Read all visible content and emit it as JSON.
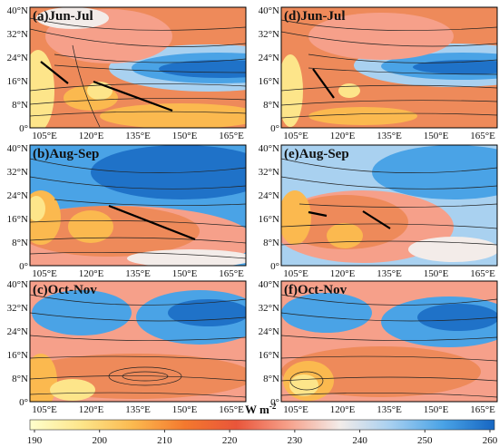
{
  "panels": [
    {
      "id": "a",
      "title": "(a)Jun-Jul"
    },
    {
      "id": "d",
      "title": "(d)Jun-Jul"
    },
    {
      "id": "b",
      "title": "(b)Aug-Sep"
    },
    {
      "id": "e",
      "title": "(e)Aug-Sep"
    },
    {
      "id": "c",
      "title": "(c)Oct-Nov"
    },
    {
      "id": "f",
      "title": "(f)Oct-Nov"
    }
  ],
  "lat_ticks": [
    "40°N",
    "32°N",
    "24°N",
    "16°N",
    "8°N",
    "0°"
  ],
  "lon_ticks": [
    "105°E",
    "120°E",
    "135°E",
    "150°E",
    "165°E"
  ],
  "colorbar": {
    "unit_label": "W m",
    "unit_exponent": "-2",
    "ticks": [
      "190",
      "200",
      "210",
      "220",
      "230",
      "240",
      "250",
      "260"
    ],
    "colors": [
      "#ffffcc",
      "#fde58a",
      "#fbb94f",
      "#f4792e",
      "#e9553a",
      "#f6a08a",
      "#f3ece9",
      "#a6cff0",
      "#4aa3e6",
      "#1666c2"
    ]
  }
}
